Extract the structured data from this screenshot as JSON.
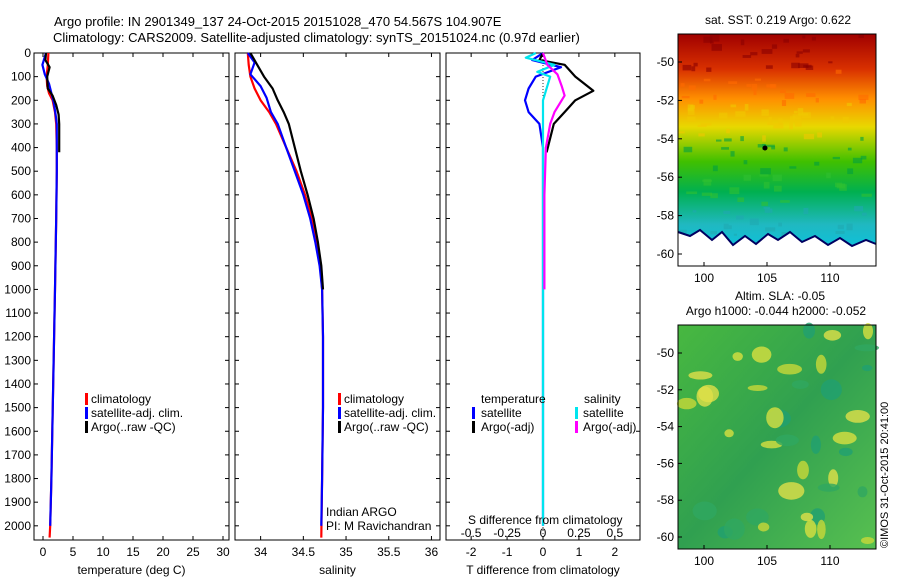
{
  "header": {
    "line1": "Argo profile: IN 2901349_137 24-Oct-2015 20151028_470 54.567S 104.907E",
    "line2": "Climatology: CARS2009. Satellite-adjusted climatology: synTS_20151024.nc (0.97d earlier)"
  },
  "colors": {
    "climatology": "#ff0000",
    "satellite_adj": "#0000ff",
    "argo": "#000000",
    "s_satellite": "#00e5ee",
    "s_argo": "#ff00ff"
  },
  "depth_axis": {
    "ticks": [
      0,
      100,
      200,
      300,
      400,
      500,
      600,
      700,
      800,
      900,
      1000,
      1100,
      1200,
      1300,
      1400,
      1500,
      1600,
      1700,
      1800,
      1900,
      2000
    ],
    "range": [
      0,
      2060
    ]
  },
  "legend_profiles": [
    "climatology",
    "satellite-adj. clim.",
    "Argo(..raw -QC)"
  ],
  "legend_diff": {
    "temperature_header": "temperature",
    "salinity_header": "salinity",
    "t_satellite": "satellite",
    "t_argo": "Argo(-adj)",
    "s_satellite": "satellite",
    "s_argo": "Argo(-adj)"
  },
  "annotations": {
    "institute": "Indian ARGO",
    "pi": "PI: M Ravichandran",
    "s_diff_label": "S difference from climatology",
    "credit": "©IMOS 31-Oct-2015 20:41:00"
  },
  "map_titles": {
    "sst": "sat. SST: 0.219 Argo: 0.622",
    "sla1": "Altim. SLA: -0.05",
    "sla2": "Argo h1000: -0.044 h2000: -0.052"
  },
  "map_axes": {
    "lat_ticks": [
      -50,
      -52,
      -54,
      -56,
      -58,
      -60
    ],
    "lon_ticks": [
      100,
      105,
      110
    ]
  },
  "chart_data": [
    {
      "type": "line",
      "xlabel": "temperature (deg C)",
      "ylabel": "",
      "xlim": [
        -1.5,
        31
      ],
      "xticks": [
        0,
        5,
        10,
        15,
        20,
        25,
        30
      ],
      "ylim": [
        2060,
        0
      ],
      "series": [
        {
          "name": "climatology",
          "points": [
            [
              0.9,
              0
            ],
            [
              0.8,
              50
            ],
            [
              0.6,
              100
            ],
            [
              0.7,
              140
            ],
            [
              1.0,
              170
            ],
            [
              1.6,
              200
            ],
            [
              2.0,
              250
            ],
            [
              2.2,
              300
            ],
            [
              2.3,
              400
            ],
            [
              2.3,
              500
            ],
            [
              2.2,
              700
            ],
            [
              2.0,
              1000
            ],
            [
              1.7,
              1400
            ],
            [
              1.4,
              1800
            ],
            [
              1.2,
              2000
            ],
            [
              1.1,
              2050
            ]
          ]
        },
        {
          "name": "satellite-adj. clim.",
          "points": [
            [
              0.5,
              0
            ],
            [
              -0.1,
              50
            ],
            [
              0.3,
              90
            ],
            [
              1.0,
              130
            ],
            [
              1.4,
              170
            ],
            [
              1.8,
              210
            ],
            [
              2.1,
              260
            ],
            [
              2.3,
              300
            ],
            [
              2.3,
              400
            ],
            [
              2.3,
              500
            ],
            [
              2.2,
              700
            ],
            [
              2.0,
              1000
            ],
            [
              1.7,
              1400
            ],
            [
              1.4,
              1800
            ],
            [
              1.2,
              2000
            ]
          ]
        },
        {
          "name": "Argo(..raw -QC)",
          "points": [
            [
              0.5,
              0
            ],
            [
              0.4,
              30
            ],
            [
              1.1,
              60
            ],
            [
              0.7,
              100
            ],
            [
              0.8,
              150
            ],
            [
              1.6,
              180
            ],
            [
              2.2,
              220
            ],
            [
              2.6,
              260
            ],
            [
              2.7,
              300
            ],
            [
              2.7,
              350
            ],
            [
              2.7,
              420
            ]
          ]
        }
      ]
    },
    {
      "type": "line",
      "xlabel": "salinity",
      "ylabel": "",
      "xlim": [
        33.7,
        36.1
      ],
      "xticks": [
        34,
        34.5,
        35,
        35.5,
        36
      ],
      "xtick_labels": [
        "34",
        "34.5",
        "35",
        "35.5",
        "36"
      ],
      "ylim": [
        2060,
        0
      ],
      "series": [
        {
          "name": "climatology",
          "points": [
            [
              33.85,
              0
            ],
            [
              33.86,
              50
            ],
            [
              33.88,
              100
            ],
            [
              33.93,
              150
            ],
            [
              34.0,
              200
            ],
            [
              34.1,
              250
            ],
            [
              34.18,
              300
            ],
            [
              34.3,
              400
            ],
            [
              34.42,
              500
            ],
            [
              34.52,
              600
            ],
            [
              34.6,
              700
            ],
            [
              34.66,
              800
            ],
            [
              34.7,
              900
            ],
            [
              34.72,
              1000
            ],
            [
              34.73,
              1200
            ],
            [
              34.73,
              1500
            ],
            [
              34.72,
              1800
            ],
            [
              34.71,
              2050
            ]
          ]
        },
        {
          "name": "satellite-adj. clim.",
          "points": [
            [
              33.85,
              0
            ],
            [
              33.93,
              40
            ],
            [
              33.88,
              90
            ],
            [
              34.0,
              140
            ],
            [
              34.07,
              190
            ],
            [
              34.12,
              250
            ],
            [
              34.2,
              300
            ],
            [
              34.3,
              400
            ],
            [
              34.4,
              500
            ],
            [
              34.5,
              600
            ],
            [
              34.58,
              700
            ],
            [
              34.64,
              800
            ],
            [
              34.69,
              900
            ],
            [
              34.72,
              1000
            ],
            [
              34.73,
              1200
            ],
            [
              34.73,
              1500
            ],
            [
              34.72,
              1800
            ],
            [
              34.71,
              2000
            ]
          ]
        },
        {
          "name": "Argo(..raw -QC)",
          "points": [
            [
              33.88,
              0
            ],
            [
              33.96,
              50
            ],
            [
              34.04,
              100
            ],
            [
              34.14,
              150
            ],
            [
              34.2,
              200
            ],
            [
              34.27,
              250
            ],
            [
              34.33,
              300
            ],
            [
              34.4,
              400
            ],
            [
              34.47,
              500
            ],
            [
              34.55,
              600
            ],
            [
              34.62,
              700
            ],
            [
              34.67,
              800
            ],
            [
              34.71,
              900
            ],
            [
              34.73,
              1000
            ]
          ]
        }
      ]
    },
    {
      "type": "line",
      "xlabel": "T difference from climatology",
      "ylabel": "",
      "xlim": [
        -2.7,
        2.7
      ],
      "xticks": [
        -2,
        -1,
        0,
        1,
        2
      ],
      "secondary_xlabel": "S difference from climatology",
      "secondary_xticks": [
        -0.5,
        -0.25,
        0,
        0.25,
        0.5
      ],
      "secondary_xlim": [
        -0.675,
        0.675
      ],
      "ylim": [
        2060,
        0
      ],
      "series": [
        {
          "name": "temperature satellite",
          "axis": "T",
          "points": [
            [
              0,
              0
            ],
            [
              -0.3,
              30
            ],
            [
              0.5,
              60
            ],
            [
              -0.2,
              100
            ],
            [
              -0.4,
              150
            ],
            [
              -0.5,
              200
            ],
            [
              -0.4,
              250
            ],
            [
              -0.1,
              300
            ],
            [
              0,
              400
            ],
            [
              0,
              600
            ],
            [
              0,
              1000
            ],
            [
              0,
              1400
            ],
            [
              0,
              1800
            ],
            [
              0,
              2000
            ]
          ]
        },
        {
          "name": "temperature Argo(-adj)",
          "axis": "T",
          "points": [
            [
              0,
              0
            ],
            [
              -0.1,
              30
            ],
            [
              0.6,
              50
            ],
            [
              0.9,
              100
            ],
            [
              1.4,
              160
            ],
            [
              0.9,
              200
            ],
            [
              0.6,
              250
            ],
            [
              0.3,
              300
            ],
            [
              0.1,
              420
            ]
          ]
        },
        {
          "name": "salinity satellite",
          "axis": "S",
          "points": [
            [
              -0.05,
              0
            ],
            [
              -0.12,
              20
            ],
            [
              0.08,
              50
            ],
            [
              -0.04,
              80
            ],
            [
              0.05,
              100
            ],
            [
              0.0,
              200
            ],
            [
              0.0,
              400
            ],
            [
              0.0,
              800
            ],
            [
              0.0,
              1200
            ],
            [
              0.0,
              1600
            ],
            [
              0.0,
              2000
            ]
          ]
        },
        {
          "name": "salinity Argo(-adj)",
          "axis": "S",
          "points": [
            [
              0.0,
              0
            ],
            [
              0.03,
              50
            ],
            [
              0.1,
              90
            ],
            [
              0.13,
              140
            ],
            [
              0.15,
              180
            ],
            [
              0.08,
              250
            ],
            [
              0.05,
              300
            ],
            [
              0.02,
              400
            ],
            [
              0.01,
              600
            ],
            [
              0.01,
              1000
            ]
          ]
        }
      ]
    }
  ]
}
